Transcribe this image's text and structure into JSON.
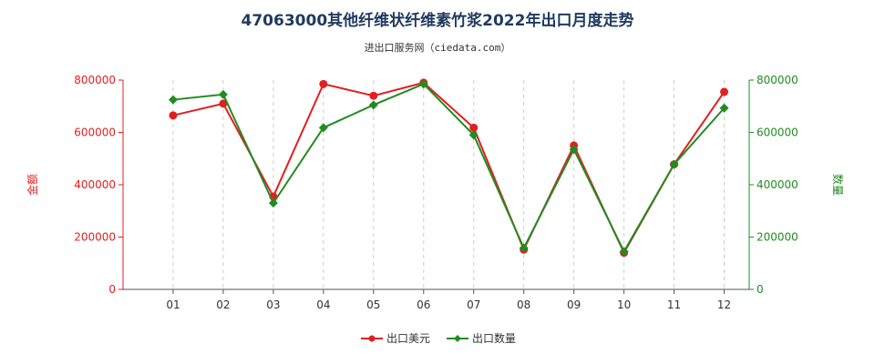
{
  "chart_data": {
    "type": "line",
    "title": "47063000其他纤维状纤维素竹浆2022年出口月度走势",
    "subtitle": "进出口服务网（ciedata.com）",
    "categories": [
      "01",
      "02",
      "03",
      "04",
      "05",
      "06",
      "07",
      "08",
      "09",
      "10",
      "11",
      "12"
    ],
    "y_left": {
      "label": "金额",
      "ylim": [
        0,
        800000
      ],
      "ticks": [
        "0",
        "200000",
        "400000",
        "600000",
        "800000"
      ],
      "color": "#e02020"
    },
    "y_right": {
      "label": "数量",
      "ylim": [
        0,
        800000
      ],
      "ticks": [
        "0",
        "200000",
        "400000",
        "600000",
        "800000"
      ],
      "color": "#228b22"
    },
    "series": [
      {
        "name": "出口美元",
        "axis": "left",
        "color": "#e02020",
        "values": [
          665000,
          710000,
          355000,
          785000,
          740000,
          790000,
          618000,
          152000,
          550000,
          140000,
          478000,
          755000
        ]
      },
      {
        "name": "出口数量",
        "axis": "right",
        "color": "#228b22",
        "values": [
          725000,
          745000,
          330000,
          618000,
          705000,
          785000,
          590000,
          158000,
          535000,
          145000,
          478000,
          693000
        ]
      }
    ],
    "grid": "vertical dashed",
    "legend": "bottom-center"
  }
}
